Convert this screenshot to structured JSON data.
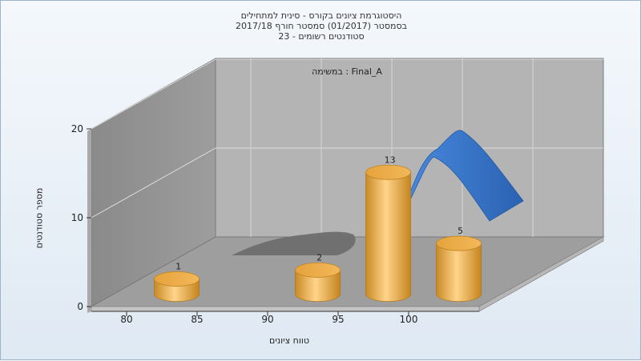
{
  "chart_data": {
    "type": "bar",
    "title": [
      "היסטוגרמת ציונים בקורס - סינית למתחילים",
      "בסמסטר  (01/2017)  סמסטר חורף 2017/18",
      "סטודנטים רשומים - 23"
    ],
    "annotation": "במשימה : Final_A",
    "xlabel": "טווח ציונים",
    "ylabel": "מספר סטודנטים",
    "x_ticks": [
      80,
      85,
      90,
      95,
      100
    ],
    "y_ticks": [
      0,
      10,
      20
    ],
    "ylim": [
      0,
      20
    ],
    "xlim": [
      77.5,
      105
    ],
    "categories": [
      82.5,
      92.5,
      97.5,
      102.5
    ],
    "values": [
      1,
      2,
      13,
      5
    ],
    "grid": true,
    "bar_color": "#e6a33c",
    "curve_color": "#2f6ec4",
    "shadow_color": "#6e6e6e"
  }
}
